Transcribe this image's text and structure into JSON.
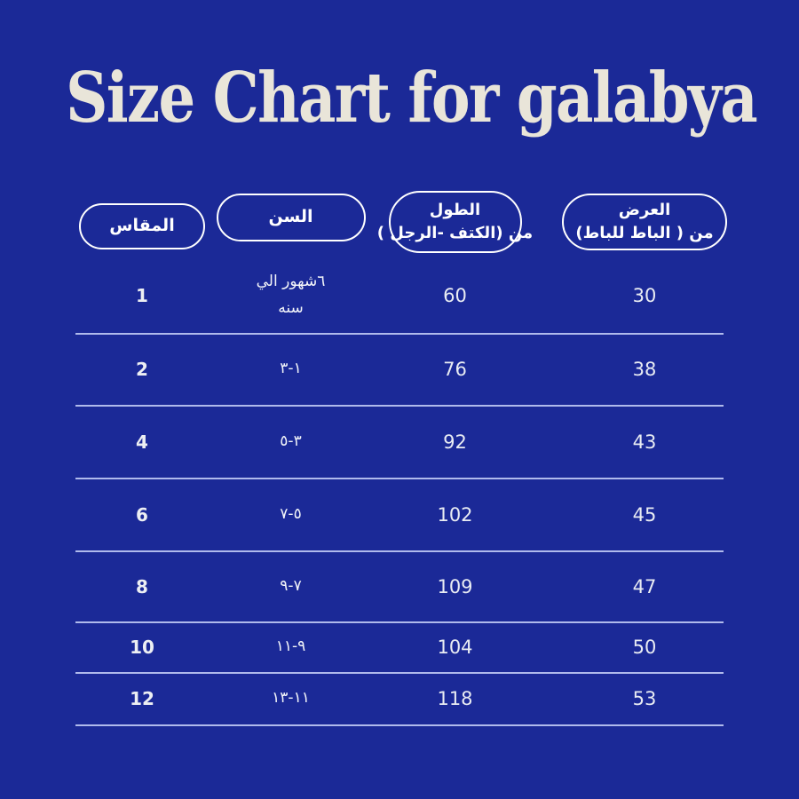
{
  "title": "Size Chart for galabya",
  "colors": {
    "background": "#1b2997",
    "title_text": "#e9e5d9",
    "header_text": "#ffffff",
    "cell_text": "#e9ecf3",
    "divider": "#b0baec"
  },
  "table": {
    "headers": [
      {
        "id": "size",
        "label": "المقاس"
      },
      {
        "id": "age",
        "label": "السن"
      },
      {
        "id": "length",
        "label": "الطول\nمن (الكتف -الرجل )"
      },
      {
        "id": "width",
        "label": "العرض\nمن ( الباط للباط)"
      }
    ],
    "rows": [
      {
        "size": "1",
        "age": "٦شهور الي\nسنه",
        "length": "60",
        "width": "30"
      },
      {
        "size": "2",
        "age": "١-٣",
        "length": "76",
        "width": "38"
      },
      {
        "size": "4",
        "age": "٣-٥",
        "length": "92",
        "width": "43"
      },
      {
        "size": "6",
        "age": "٥-٧",
        "length": "102",
        "width": "45"
      },
      {
        "size": "8",
        "age": "٧-٩",
        "length": "109",
        "width": "47"
      },
      {
        "size": "10",
        "age": "٩-١١",
        "length": "104",
        "width": "50"
      },
      {
        "size": "12",
        "age": "١١-١٣",
        "length": "118",
        "width": "53"
      }
    ]
  },
  "chart_data": {
    "type": "table",
    "title": "Size Chart for galabya",
    "columns": [
      "المقاس",
      "السن",
      "الطول من (الكتف -الرجل )",
      "العرض من ( الباط للباط)"
    ],
    "rows": [
      [
        "1",
        "٦شهور الي سنه",
        60,
        30
      ],
      [
        "2",
        "١-٣",
        76,
        38
      ],
      [
        "4",
        "٣-٥",
        92,
        43
      ],
      [
        "6",
        "٥-٧",
        102,
        45
      ],
      [
        "8",
        "٧-٩",
        109,
        47
      ],
      [
        "10",
        "٩-١١",
        104,
        50
      ],
      [
        "12",
        "١١-١٣",
        118,
        53
      ]
    ]
  }
}
